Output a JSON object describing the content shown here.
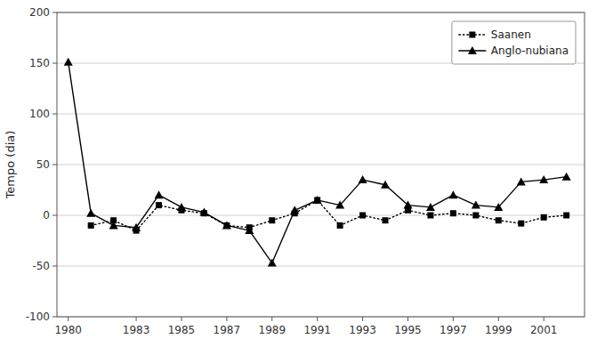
{
  "chart_data": {
    "type": "line",
    "y_label": "Tempo (dia)",
    "x": [
      1980,
      1981,
      1982,
      1983,
      1984,
      1985,
      1986,
      1987,
      1988,
      1989,
      1990,
      1991,
      1992,
      1993,
      1994,
      1995,
      1996,
      1997,
      1998,
      1999,
      2000,
      2001,
      2002
    ],
    "series": [
      {
        "name": "Saanen",
        "color": "#000000",
        "marker": "square",
        "line_style": "dotted",
        "values": [
          null,
          -10,
          -5,
          -15,
          10,
          5,
          2,
          -10,
          -12,
          -5,
          2,
          15,
          -10,
          0,
          -5,
          5,
          0,
          2,
          0,
          -5,
          -8,
          -2,
          0
        ]
      },
      {
        "name": "Anglo-nubiana",
        "color": "#000000",
        "marker": "triangle",
        "line_style": "solid",
        "values": [
          151,
          2,
          -10,
          -12,
          20,
          8,
          3,
          -10,
          -15,
          -47,
          5,
          15,
          10,
          35,
          30,
          10,
          8,
          20,
          10,
          8,
          33,
          35,
          38
        ]
      }
    ],
    "xlim": [
      1979.5,
      2002.8
    ],
    "xticks": [
      1980,
      1983,
      1985,
      1987,
      1989,
      1991,
      1993,
      1995,
      1997,
      1999,
      2001
    ],
    "ylim": [
      -100,
      200
    ],
    "yticks": [
      -100,
      -50,
      0,
      50,
      100,
      150,
      200
    ],
    "grid": true,
    "legend": "upper right"
  }
}
